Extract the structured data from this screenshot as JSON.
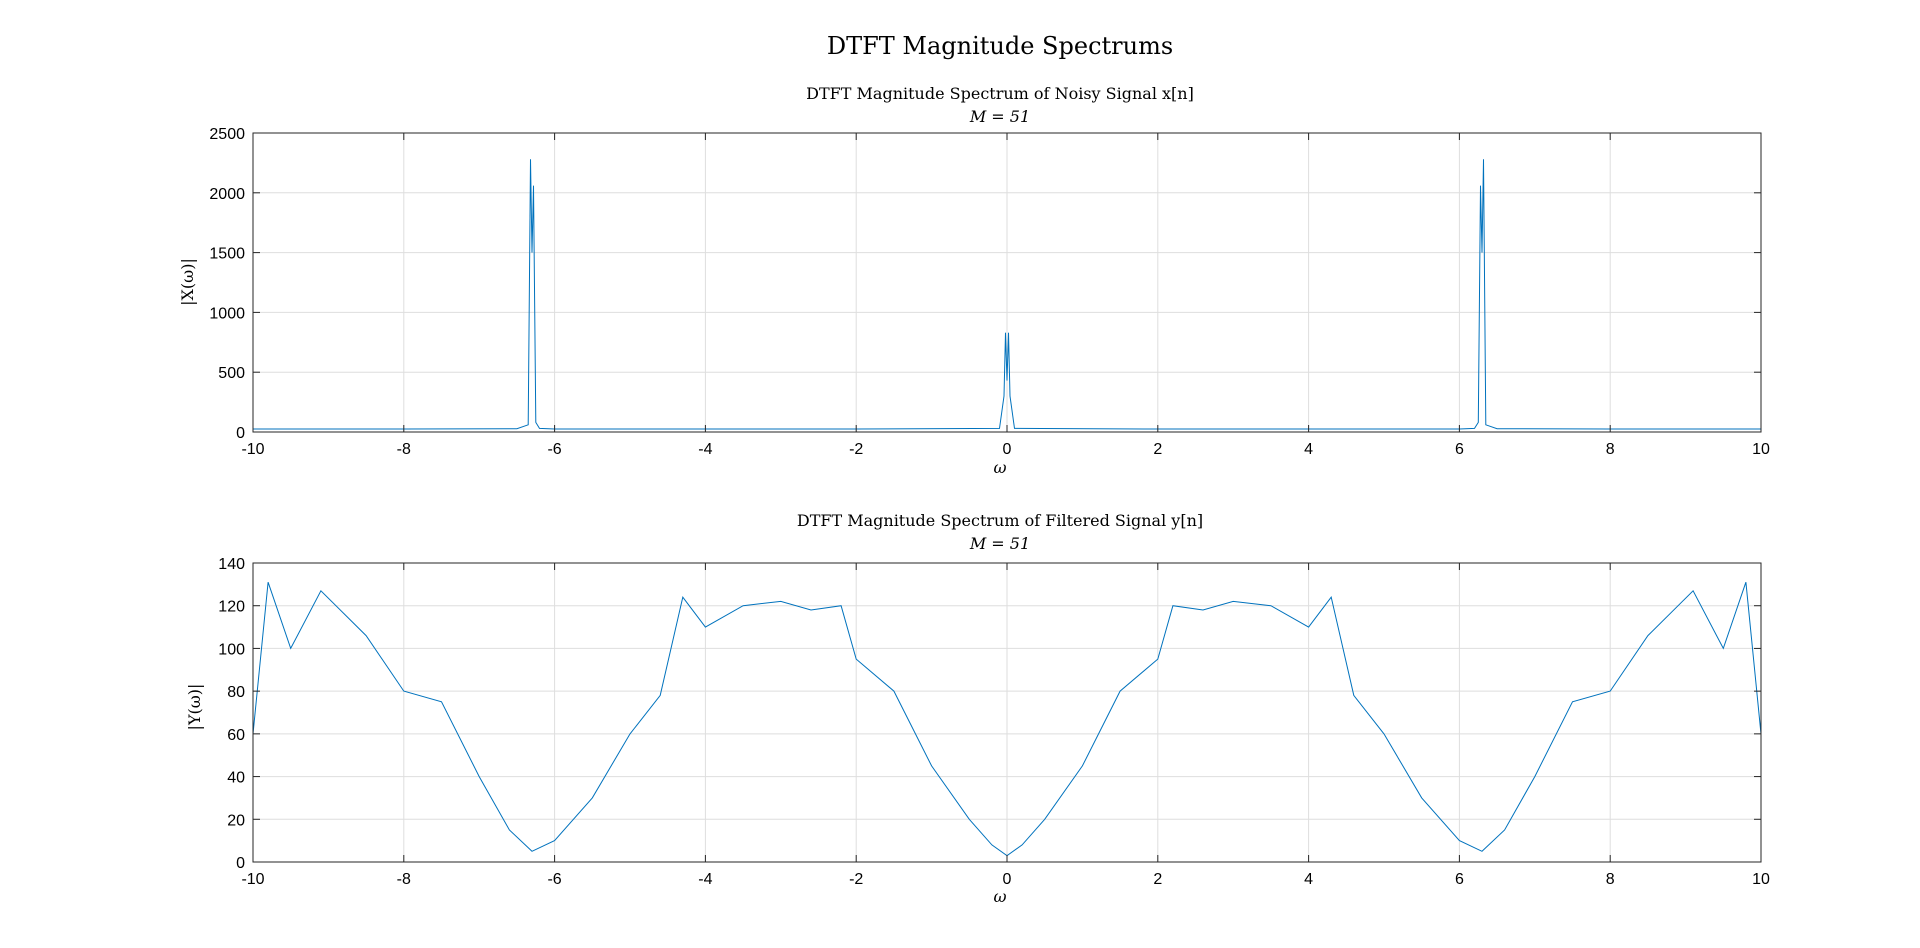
{
  "figure": {
    "title": "DTFT Magnitude Spectrums",
    "colors": {
      "line": "#0072BD",
      "grid": "#dedede",
      "axes": "#262626",
      "background": "#ffffff"
    }
  },
  "chart_data": [
    {
      "type": "line",
      "title": "DTFT Magnitude Spectrum of Noisy Signal x[n]",
      "subtitle": "M = 51",
      "xlabel": "ω",
      "ylabel": "|X(ω)|",
      "xlim": [
        -10,
        10
      ],
      "ylim": [
        0,
        2500
      ],
      "xticks": [
        -10,
        -8,
        -6,
        -4,
        -2,
        0,
        2,
        4,
        6,
        8,
        10
      ],
      "yticks": [
        0,
        500,
        1000,
        1500,
        2000,
        2500
      ],
      "xtick_labels": [
        "-10",
        "-8",
        "-6",
        "-4",
        "-2",
        "0",
        "2",
        "4",
        "6",
        "8",
        "10"
      ],
      "ytick_labels": [
        "0",
        "500",
        "1000",
        "1500",
        "2000",
        "2500"
      ],
      "grid": true,
      "series": [
        {
          "x": [
            -10,
            -8,
            -6.5,
            -6.35,
            -6.32,
            -6.3,
            -6.28,
            -6.25,
            -6.2,
            -6,
            -4,
            -2,
            -0.1,
            -0.04,
            -0.02,
            0,
            0.02,
            0.04,
            0.1,
            2,
            4,
            6,
            6.2,
            6.25,
            6.28,
            6.3,
            6.32,
            6.35,
            6.5,
            8,
            10
          ],
          "y": [
            25,
            25,
            28,
            60,
            2280,
            1500,
            2060,
            80,
            30,
            25,
            25,
            25,
            30,
            300,
            830,
            430,
            830,
            300,
            30,
            25,
            25,
            25,
            30,
            80,
            2060,
            1500,
            2280,
            60,
            28,
            25,
            25
          ]
        }
      ]
    },
    {
      "type": "line",
      "title": "DTFT Magnitude Spectrum of Filtered Signal y[n]",
      "subtitle": "M = 51",
      "xlabel": "ω",
      "ylabel": "|Y(ω)|",
      "xlim": [
        -10,
        10
      ],
      "ylim": [
        0,
        140
      ],
      "xticks": [
        -10,
        -8,
        -6,
        -4,
        -2,
        0,
        2,
        4,
        6,
        8,
        10
      ],
      "yticks": [
        0,
        20,
        40,
        60,
        80,
        100,
        120,
        140
      ],
      "xtick_labels": [
        "-10",
        "-8",
        "-6",
        "-4",
        "-2",
        "0",
        "2",
        "4",
        "6",
        "8",
        "10"
      ],
      "ytick_labels": [
        "0",
        "20",
        "40",
        "60",
        "80",
        "100",
        "120",
        "140"
      ],
      "grid": true,
      "series": [
        {
          "x": [
            -10,
            -9.8,
            -9.5,
            -9.1,
            -8.5,
            -8,
            -7.5,
            -7,
            -6.6,
            -6.3,
            -6,
            -5.5,
            -5,
            -4.6,
            -4.3,
            -4,
            -3.5,
            -3,
            -2.6,
            -2.2,
            -2,
            -1.5,
            -1,
            -0.5,
            -0.2,
            0,
            0.2,
            0.5,
            1,
            1.5,
            2,
            2.2,
            2.6,
            3,
            3.5,
            4,
            4.3,
            4.6,
            5,
            5.5,
            6,
            6.3,
            6.6,
            7,
            7.5,
            8,
            8.5,
            9.1,
            9.5,
            9.8,
            10
          ],
          "y": [
            60,
            131,
            100,
            127,
            106,
            80,
            75,
            40,
            15,
            5,
            10,
            30,
            60,
            78,
            124,
            110,
            120,
            122,
            118,
            120,
            95,
            80,
            45,
            20,
            8,
            3,
            8,
            20,
            45,
            80,
            95,
            120,
            118,
            122,
            120,
            110,
            124,
            78,
            60,
            30,
            10,
            5,
            15,
            40,
            75,
            80,
            106,
            127,
            100,
            131,
            60
          ]
        }
      ]
    }
  ]
}
